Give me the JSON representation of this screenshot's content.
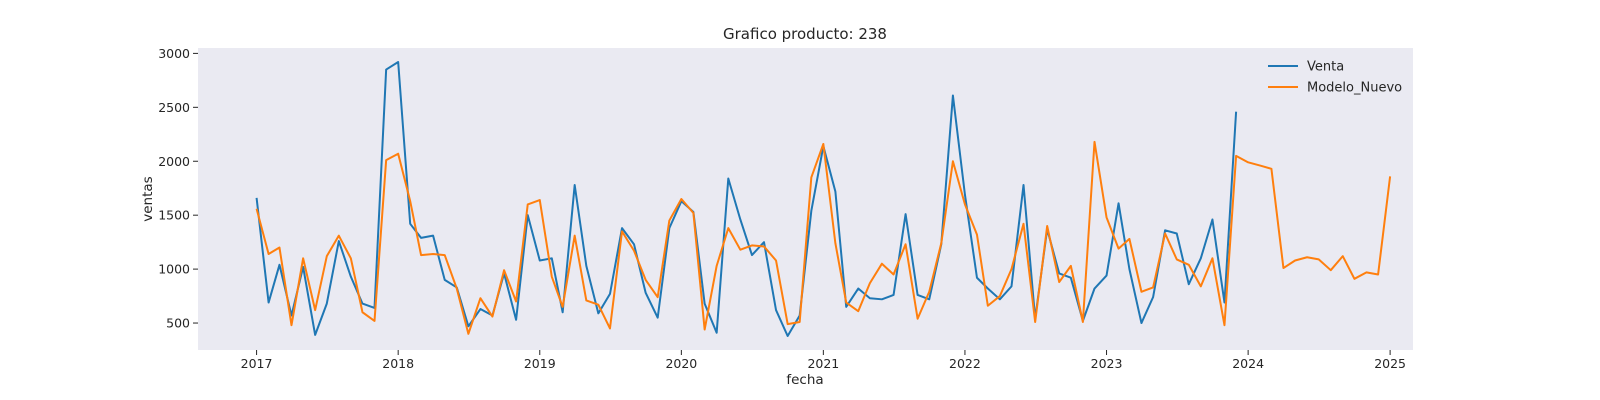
{
  "chart_data": {
    "type": "line",
    "title": "Grafico producto: 238",
    "xlabel": "fecha",
    "ylabel": "ventas",
    "x_axis": "monthly dates",
    "xlim": [
      "2016-08-03",
      "2025-03-01"
    ],
    "ylim": [
      250,
      3050
    ],
    "x_ticks": [
      "2017",
      "2018",
      "2019",
      "2020",
      "2021",
      "2022",
      "2023",
      "2024",
      "2025"
    ],
    "y_ticks": [
      500,
      1000,
      1500,
      2000,
      2500,
      3000
    ],
    "grid": false,
    "legend_position": "upper right",
    "background": "#eaeaf2",
    "series": [
      {
        "name": "Venta",
        "color": "#1f77b4",
        "start": "2017-01",
        "values": [
          1660,
          690,
          1040,
          570,
          1020,
          390,
          680,
          1260,
          930,
          680,
          640,
          2850,
          2920,
          1420,
          1290,
          1310,
          900,
          830,
          470,
          630,
          570,
          960,
          530,
          1500,
          1080,
          1100,
          600,
          1780,
          1030,
          590,
          770,
          1380,
          1230,
          780,
          550,
          1380,
          1630,
          1530,
          680,
          410,
          1840,
          1460,
          1130,
          1250,
          620,
          380,
          570,
          1540,
          2140,
          1720,
          650,
          820,
          730,
          720,
          760,
          1510,
          760,
          720,
          1230,
          2610,
          1690,
          920,
          820,
          720,
          840,
          1780,
          540,
          1370,
          960,
          920,
          520,
          820,
          940,
          1610,
          1000,
          500,
          740,
          1360,
          1330,
          860,
          1100,
          1460,
          690,
          2460
        ]
      },
      {
        "name": "Modelo_Nuevo",
        "color": "#ff7f0e",
        "start": "2017-01",
        "values": [
          1560,
          1140,
          1200,
          480,
          1100,
          620,
          1120,
          1310,
          1100,
          600,
          520,
          2010,
          2070,
          1630,
          1130,
          1140,
          1130,
          820,
          400,
          730,
          560,
          990,
          700,
          1600,
          1640,
          930,
          650,
          1310,
          710,
          670,
          450,
          1350,
          1170,
          900,
          740,
          1450,
          1650,
          1520,
          440,
          1030,
          1380,
          1180,
          1220,
          1210,
          1080,
          490,
          510,
          1850,
          2160,
          1240,
          690,
          610,
          870,
          1050,
          950,
          1230,
          540,
          790,
          1240,
          2000,
          1600,
          1320,
          660,
          750,
          1000,
          1420,
          510,
          1400,
          880,
          1030,
          510,
          2180,
          1480,
          1190,
          1280,
          790,
          830,
          1330,
          1090,
          1040,
          840,
          1100,
          480,
          2050,
          1990,
          1960,
          1930,
          1010,
          1080,
          1110,
          1090,
          990,
          1120,
          910,
          970,
          950,
          1860
        ]
      }
    ]
  }
}
